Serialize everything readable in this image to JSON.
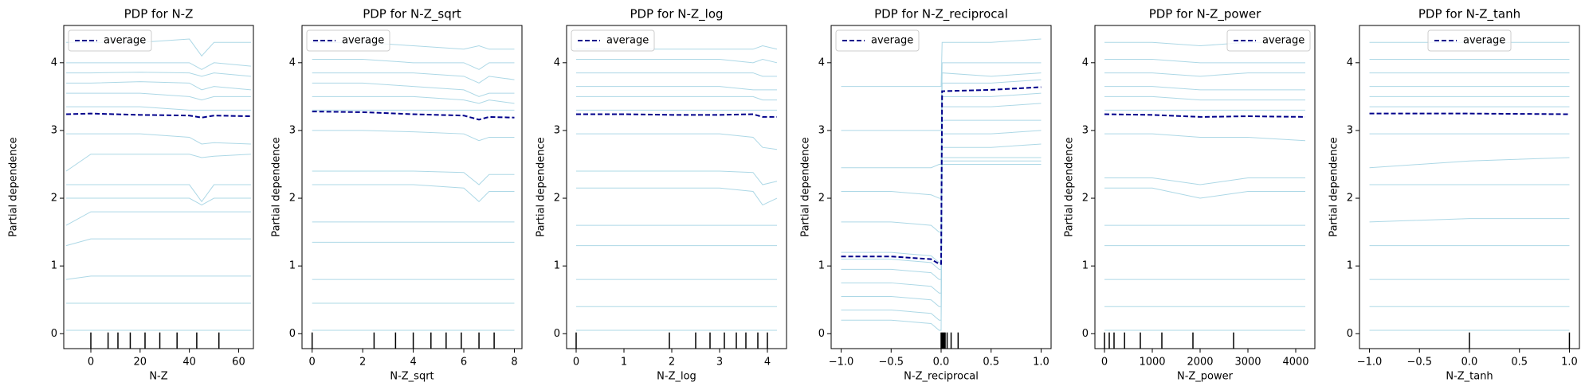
{
  "chart_data": [
    {
      "type": "line",
      "title": "PDP for N-Z",
      "xlabel": "N-Z",
      "ylabel": "Partial dependence",
      "x": [
        -10,
        0,
        20,
        40,
        45,
        50,
        65
      ],
      "xlim": [
        -11,
        66
      ],
      "xticks": [
        0,
        20,
        40,
        60
      ],
      "ylim": [
        -0.22,
        4.55
      ],
      "yticks": [
        0,
        1,
        2,
        3,
        4
      ],
      "legend": "upper left",
      "series": [
        {
          "name": "average",
          "color": "#00008b",
          "style": "dashed",
          "values": [
            3.24,
            3.25,
            3.23,
            3.22,
            3.19,
            3.22,
            3.21
          ]
        }
      ],
      "ice": {
        "color": "#add8e6",
        "values": [
          [
            4.3,
            4.3,
            4.3,
            4.35,
            4.1,
            4.3,
            4.3
          ],
          [
            4.0,
            4.0,
            4.0,
            4.0,
            3.9,
            4.0,
            3.95
          ],
          [
            3.85,
            3.85,
            3.86,
            3.85,
            3.8,
            3.85,
            3.8
          ],
          [
            3.7,
            3.7,
            3.72,
            3.7,
            3.6,
            3.65,
            3.6
          ],
          [
            3.55,
            3.55,
            3.55,
            3.5,
            3.45,
            3.5,
            3.5
          ],
          [
            3.35,
            3.35,
            3.35,
            3.3,
            3.3,
            3.3,
            3.3
          ],
          [
            2.95,
            2.95,
            2.95,
            2.9,
            2.8,
            2.82,
            2.8
          ],
          [
            2.4,
            2.65,
            2.65,
            2.65,
            2.6,
            2.62,
            2.65
          ],
          [
            2.2,
            2.2,
            2.2,
            2.2,
            1.95,
            2.2,
            2.2
          ],
          [
            2.0,
            2.0,
            2.0,
            2.0,
            1.9,
            2.0,
            2.0
          ],
          [
            1.6,
            1.8,
            1.8,
            1.8,
            1.8,
            1.8,
            1.8
          ],
          [
            1.3,
            1.4,
            1.4,
            1.4,
            1.4,
            1.4,
            1.4
          ],
          [
            0.8,
            0.85,
            0.85,
            0.85,
            0.85,
            0.85,
            0.85
          ],
          [
            0.45,
            0.45,
            0.45,
            0.45,
            0.45,
            0.45,
            0.45
          ],
          [
            0.05,
            0.05,
            0.05,
            0.05,
            0.05,
            0.05,
            0.05
          ]
        ]
      },
      "deciles": [
        0,
        7,
        11,
        16,
        22,
        28,
        35,
        43,
        52
      ]
    },
    {
      "type": "line",
      "title": "PDP for N-Z_sqrt",
      "xlabel": "N-Z_sqrt",
      "ylabel": "Partial dependence",
      "x": [
        0,
        2,
        4,
        6,
        6.6,
        7,
        8
      ],
      "xlim": [
        -0.4,
        8.3
      ],
      "xticks": [
        0,
        2,
        4,
        6,
        8
      ],
      "ylim": [
        -0.22,
        4.55
      ],
      "yticks": [
        0,
        1,
        2,
        3,
        4
      ],
      "legend": "upper left",
      "series": [
        {
          "name": "average",
          "color": "#00008b",
          "style": "dashed",
          "values": [
            3.28,
            3.27,
            3.24,
            3.22,
            3.16,
            3.2,
            3.19
          ]
        }
      ],
      "ice": {
        "color": "#add8e6",
        "values": [
          [
            4.3,
            4.3,
            4.25,
            4.2,
            4.25,
            4.2,
            4.2
          ],
          [
            4.05,
            4.05,
            4.0,
            4.0,
            3.9,
            4.0,
            4.0
          ],
          [
            3.85,
            3.85,
            3.85,
            3.8,
            3.7,
            3.8,
            3.75
          ],
          [
            3.7,
            3.7,
            3.65,
            3.6,
            3.5,
            3.55,
            3.55
          ],
          [
            3.5,
            3.5,
            3.5,
            3.45,
            3.4,
            3.45,
            3.4
          ],
          [
            3.3,
            3.3,
            3.3,
            3.3,
            3.3,
            3.3,
            3.3
          ],
          [
            3.0,
            3.0,
            2.98,
            2.95,
            2.85,
            2.9,
            2.9
          ],
          [
            2.4,
            2.4,
            2.4,
            2.38,
            2.2,
            2.35,
            2.35
          ],
          [
            2.2,
            2.2,
            2.2,
            2.15,
            1.95,
            2.1,
            2.1
          ],
          [
            1.65,
            1.65,
            1.65,
            1.65,
            1.65,
            1.65,
            1.65
          ],
          [
            1.35,
            1.35,
            1.35,
            1.35,
            1.35,
            1.35,
            1.35
          ],
          [
            0.8,
            0.8,
            0.8,
            0.8,
            0.8,
            0.8,
            0.8
          ],
          [
            0.45,
            0.45,
            0.45,
            0.45,
            0.45,
            0.45,
            0.45
          ],
          [
            0.05,
            0.05,
            0.05,
            0.05,
            0.05,
            0.05,
            0.05
          ]
        ]
      },
      "deciles": [
        0,
        2.45,
        3.3,
        4,
        4.7,
        5.3,
        5.9,
        6.6,
        7.2
      ]
    },
    {
      "type": "line",
      "title": "PDP for N-Z_log",
      "xlabel": "N-Z_log",
      "ylabel": "Partial dependence",
      "x": [
        0,
        1,
        2,
        3,
        3.7,
        3.9,
        4.2
      ],
      "xlim": [
        -0.2,
        4.4
      ],
      "xticks": [
        0,
        1,
        2,
        3,
        4
      ],
      "ylim": [
        -0.22,
        4.55
      ],
      "yticks": [
        0,
        1,
        2,
        3,
        4
      ],
      "legend": "upper left",
      "series": [
        {
          "name": "average",
          "color": "#00008b",
          "style": "dashed",
          "values": [
            3.24,
            3.24,
            3.23,
            3.23,
            3.24,
            3.2,
            3.2
          ]
        }
      ],
      "ice": {
        "color": "#add8e6",
        "values": [
          [
            4.2,
            4.2,
            4.2,
            4.2,
            4.2,
            4.25,
            4.2
          ],
          [
            4.05,
            4.05,
            4.05,
            4.05,
            4.0,
            4.05,
            4.0
          ],
          [
            3.85,
            3.85,
            3.85,
            3.85,
            3.85,
            3.8,
            3.8
          ],
          [
            3.65,
            3.65,
            3.65,
            3.65,
            3.6,
            3.6,
            3.6
          ],
          [
            3.5,
            3.5,
            3.5,
            3.5,
            3.5,
            3.45,
            3.45
          ],
          [
            3.3,
            3.3,
            3.3,
            3.3,
            3.3,
            3.3,
            3.3
          ],
          [
            2.95,
            2.95,
            2.95,
            2.95,
            2.9,
            2.75,
            2.72
          ],
          [
            2.4,
            2.4,
            2.4,
            2.4,
            2.38,
            2.2,
            2.25
          ],
          [
            2.15,
            2.15,
            2.15,
            2.15,
            2.1,
            1.9,
            2.0
          ],
          [
            1.6,
            1.6,
            1.6,
            1.6,
            1.6,
            1.6,
            1.6
          ],
          [
            1.3,
            1.3,
            1.3,
            1.3,
            1.3,
            1.3,
            1.3
          ],
          [
            0.8,
            0.8,
            0.8,
            0.8,
            0.8,
            0.8,
            0.8
          ],
          [
            0.4,
            0.4,
            0.4,
            0.4,
            0.4,
            0.4,
            0.4
          ],
          [
            0.05,
            0.05,
            0.05,
            0.05,
            0.05,
            0.05,
            0.05
          ]
        ]
      },
      "deciles": [
        0,
        1.95,
        2.5,
        2.8,
        3.1,
        3.35,
        3.55,
        3.8,
        4.0
      ]
    },
    {
      "type": "line",
      "title": "PDP for N-Z_reciprocal",
      "xlabel": "N-Z_reciprocal",
      "ylabel": "Partial dependence",
      "x": [
        -1,
        -0.5,
        -0.1,
        -0.02,
        0,
        0.01,
        0.5,
        1
      ],
      "xlim": [
        -1.1,
        1.1
      ],
      "xticks": [
        {
          "value": -1,
          "label": "−1.0"
        },
        {
          "value": -0.5,
          "label": "−0.5"
        },
        {
          "value": 0,
          "label": "0.0"
        },
        0.5,
        {
          "value": 1,
          "label": "1.0"
        }
      ],
      "ylim": [
        -0.22,
        4.55
      ],
      "yticks": [
        0,
        1,
        2,
        3,
        4
      ],
      "legend": "upper left",
      "series": [
        {
          "name": "average",
          "color": "#00008b",
          "style": "dashed",
          "values": [
            1.14,
            1.14,
            1.1,
            1.03,
            1.03,
            3.58,
            3.6,
            3.64
          ]
        }
      ],
      "ice": {
        "color": "#add8e6",
        "values": [
          [
            3.65,
            3.65,
            3.65,
            3.65,
            3.65,
            4.3,
            4.3,
            4.35
          ],
          [
            3.0,
            3.0,
            3.0,
            3.0,
            3.0,
            4.0,
            4.0,
            4.0
          ],
          [
            2.45,
            2.45,
            2.45,
            2.5,
            2.5,
            3.85,
            3.8,
            3.85
          ],
          [
            2.1,
            2.1,
            2.05,
            2.0,
            2.0,
            3.7,
            3.7,
            3.75
          ],
          [
            1.65,
            1.65,
            1.6,
            1.5,
            1.5,
            3.5,
            3.5,
            3.55
          ],
          [
            1.2,
            1.2,
            1.15,
            1.05,
            1.05,
            3.35,
            3.35,
            3.4
          ],
          [
            1.1,
            1.1,
            1.05,
            0.95,
            0.95,
            3.15,
            3.15,
            3.15
          ],
          [
            0.95,
            0.95,
            0.9,
            0.8,
            0.8,
            2.95,
            2.95,
            3.0
          ],
          [
            0.75,
            0.75,
            0.7,
            0.6,
            0.6,
            2.75,
            2.75,
            2.8
          ],
          [
            0.55,
            0.55,
            0.5,
            0.4,
            0.4,
            2.6,
            2.6,
            2.6
          ],
          [
            0.35,
            0.35,
            0.3,
            0.2,
            0.2,
            2.55,
            2.55,
            2.55
          ],
          [
            0.2,
            0.2,
            0.15,
            0.05,
            0.05,
            2.5,
            2.5,
            2.5
          ]
        ]
      },
      "deciles": [
        0,
        0.01,
        0.02,
        0.03,
        0.04,
        0.06,
        0.1,
        0.17
      ]
    },
    {
      "type": "line",
      "title": "PDP for N-Z_power",
      "xlabel": "N-Z_power",
      "ylabel": "Partial dependence",
      "x": [
        0,
        1000,
        2000,
        3000,
        4200
      ],
      "xlim": [
        -200,
        4400
      ],
      "xticks": [
        0,
        1000,
        2000,
        3000,
        4000
      ],
      "ylim": [
        -0.22,
        4.55
      ],
      "yticks": [
        0,
        1,
        2,
        3,
        4
      ],
      "legend": "upper right",
      "series": [
        {
          "name": "average",
          "color": "#00008b",
          "style": "dashed",
          "values": [
            3.24,
            3.23,
            3.2,
            3.21,
            3.2
          ]
        }
      ],
      "ice": {
        "color": "#add8e6",
        "values": [
          [
            4.3,
            4.3,
            4.25,
            4.3,
            4.3
          ],
          [
            4.05,
            4.05,
            4.0,
            4.0,
            4.0
          ],
          [
            3.85,
            3.85,
            3.8,
            3.85,
            3.85
          ],
          [
            3.65,
            3.65,
            3.6,
            3.6,
            3.6
          ],
          [
            3.5,
            3.5,
            3.45,
            3.45,
            3.45
          ],
          [
            3.3,
            3.3,
            3.3,
            3.3,
            3.3
          ],
          [
            2.95,
            2.95,
            2.9,
            2.9,
            2.85
          ],
          [
            2.3,
            2.3,
            2.2,
            2.3,
            2.3
          ],
          [
            2.15,
            2.15,
            2.0,
            2.1,
            2.1
          ],
          [
            1.6,
            1.6,
            1.6,
            1.6,
            1.6
          ],
          [
            1.3,
            1.3,
            1.3,
            1.3,
            1.3
          ],
          [
            0.8,
            0.8,
            0.8,
            0.8,
            0.8
          ],
          [
            0.4,
            0.4,
            0.4,
            0.4,
            0.4
          ],
          [
            0.05,
            0.05,
            0.05,
            0.05,
            0.05
          ]
        ]
      },
      "deciles": [
        0,
        100,
        200,
        420,
        750,
        1200,
        1850,
        2700
      ]
    },
    {
      "type": "line",
      "title": "PDP for N-Z_tanh",
      "xlabel": "N-Z_tanh",
      "ylabel": "Partial dependence",
      "x": [
        -1,
        0,
        1
      ],
      "xlim": [
        -1.1,
        1.1
      ],
      "xticks": [
        {
          "value": -1,
          "label": "−1.0"
        },
        {
          "value": -0.5,
          "label": "−0.5"
        },
        {
          "value": 0,
          "label": "0.0"
        },
        0.5,
        {
          "value": 1,
          "label": "1.0"
        }
      ],
      "ylim": [
        -0.22,
        4.55
      ],
      "yticks": [
        0,
        1,
        2,
        3,
        4
      ],
      "legend": "upper center",
      "series": [
        {
          "name": "average",
          "color": "#00008b",
          "style": "dashed",
          "values": [
            3.25,
            3.25,
            3.24
          ]
        }
      ],
      "ice": {
        "color": "#add8e6",
        "values": [
          [
            4.3,
            4.3,
            4.3
          ],
          [
            4.05,
            4.05,
            4.05
          ],
          [
            3.85,
            3.85,
            3.85
          ],
          [
            3.65,
            3.65,
            3.65
          ],
          [
            3.5,
            3.5,
            3.5
          ],
          [
            3.35,
            3.35,
            3.35
          ],
          [
            2.95,
            2.95,
            2.95
          ],
          [
            2.45,
            2.55,
            2.6
          ],
          [
            2.2,
            2.2,
            2.2
          ],
          [
            1.65,
            1.7,
            1.7
          ],
          [
            1.3,
            1.3,
            1.3
          ],
          [
            0.8,
            0.8,
            0.8
          ],
          [
            0.4,
            0.4,
            0.4
          ],
          [
            0.05,
            0.05,
            0.05
          ]
        ]
      },
      "deciles": [
        0,
        1
      ]
    }
  ]
}
